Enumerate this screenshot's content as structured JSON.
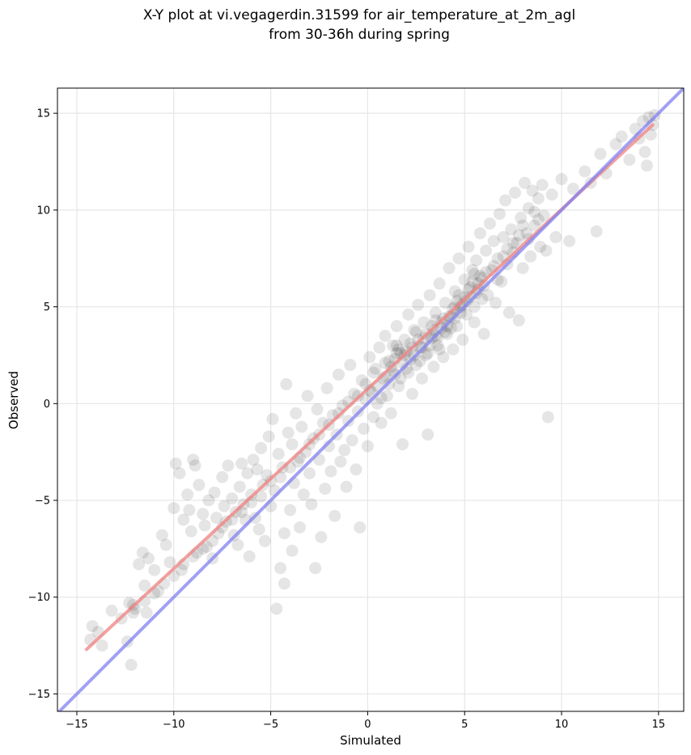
{
  "chart_data": {
    "type": "scatter",
    "title": "X-Y plot at vi.vegagerdin.31599 for air_temperature_at_2m_agl",
    "subtitle": "from 30-36h during spring",
    "xlabel": "Simulated",
    "ylabel": "Observed",
    "xlim": [
      -16.0,
      16.3
    ],
    "ylim": [
      -15.9,
      16.3
    ],
    "xticks": [
      -15,
      -10,
      -5,
      0,
      5,
      10,
      15
    ],
    "yticks": [
      -15,
      -10,
      -5,
      0,
      5,
      10,
      15
    ],
    "xtick_labels": [
      "−15",
      "−10",
      "−5",
      "0",
      "5",
      "10",
      "15"
    ],
    "ytick_labels": [
      "−15",
      "−10",
      "−5",
      "0",
      "5",
      "10",
      "15"
    ],
    "grid": true,
    "marker_color": "#000000",
    "marker_alpha": 0.1,
    "colors": {
      "fit_line": "#f08080",
      "identity_line": "#8080f0"
    },
    "lines": [
      {
        "role": "fit",
        "x": [
          -14.5,
          14.7
        ],
        "y": [
          -12.7,
          14.4
        ]
      },
      {
        "role": "identity",
        "x": [
          -16.0,
          16.3
        ],
        "y": [
          -16.0,
          16.3
        ]
      }
    ],
    "points": [
      [
        -14.3,
        -12.2
      ],
      [
        -14.2,
        -11.5
      ],
      [
        -13.9,
        -11.8
      ],
      [
        -13.7,
        -12.5
      ],
      [
        -13.2,
        -10.7
      ],
      [
        -12.7,
        -11.1
      ],
      [
        -12.4,
        -12.3
      ],
      [
        -12.3,
        -10.3
      ],
      [
        -12.2,
        -13.5
      ],
      [
        -12.1,
        -10.4
      ],
      [
        -12.1,
        -10.8
      ],
      [
        -11.8,
        -8.3
      ],
      [
        -11.6,
        -7.7
      ],
      [
        -11.5,
        -9.4
      ],
      [
        -11.4,
        -10.8
      ],
      [
        -11.3,
        -8.0
      ],
      [
        -11.0,
        -8.6
      ],
      [
        -10.8,
        -9.7
      ],
      [
        -10.6,
        -6.8
      ],
      [
        -10.4,
        -7.3
      ],
      [
        -10.2,
        -8.2
      ],
      [
        -10.0,
        -5.4
      ],
      [
        -9.9,
        -3.1
      ],
      [
        -9.7,
        -3.6
      ],
      [
        -9.6,
        -8.6
      ],
      [
        -9.5,
        -6.0
      ],
      [
        -9.3,
        -4.7
      ],
      [
        -9.2,
        -5.5
      ],
      [
        -9.1,
        -6.6
      ],
      [
        -9.0,
        -2.9
      ],
      [
        -8.9,
        -3.2
      ],
      [
        -8.8,
        -7.7
      ],
      [
        -8.7,
        -4.2
      ],
      [
        -8.5,
        -5.7
      ],
      [
        -8.4,
        -6.3
      ],
      [
        -8.3,
        -7.4
      ],
      [
        -8.2,
        -5.0
      ],
      [
        -8.0,
        -8.0
      ],
      [
        -7.9,
        -4.6
      ],
      [
        -7.8,
        -5.9
      ],
      [
        -7.7,
        -6.7
      ],
      [
        -7.5,
        -3.8
      ],
      [
        -7.4,
        -5.3
      ],
      [
        -7.3,
        -6.1
      ],
      [
        -7.2,
        -3.2
      ],
      [
        -7.0,
        -4.9
      ],
      [
        -6.9,
        -6.8
      ],
      [
        -6.8,
        -5.6
      ],
      [
        -6.7,
        -7.3
      ],
      [
        -6.6,
        -4.3
      ],
      [
        -6.5,
        -3.1
      ],
      [
        -6.4,
        -5.2
      ],
      [
        -6.3,
        -6.0
      ],
      [
        -6.2,
        -3.6
      ],
      [
        -6.1,
        -7.9
      ],
      [
        -6.0,
        -4.7
      ],
      [
        -5.9,
        -2.9
      ],
      [
        -5.8,
        -5.9
      ],
      [
        -5.7,
        -3.4
      ],
      [
        -5.6,
        -6.5
      ],
      [
        -5.5,
        -2.3
      ],
      [
        -5.4,
        -4.2
      ],
      [
        -5.3,
        -7.1
      ],
      [
        -5.2,
        -3.7
      ],
      [
        -5.1,
        -1.7
      ],
      [
        -5.0,
        -5.3
      ],
      [
        -4.9,
        -0.8
      ],
      [
        -4.8,
        -4.5
      ],
      [
        -4.7,
        -10.6
      ],
      [
        -4.6,
        -2.6
      ],
      [
        -4.5,
        -8.5
      ],
      [
        -4.4,
        -3.3
      ],
      [
        -4.3,
        -9.3
      ],
      [
        -4.3,
        -6.7
      ],
      [
        -4.2,
        1.0
      ],
      [
        -4.1,
        -1.5
      ],
      [
        -4.0,
        -5.5
      ],
      [
        -3.9,
        -2.1
      ],
      [
        -3.9,
        -7.6
      ],
      [
        -3.8,
        -4.1
      ],
      [
        -3.7,
        -0.5
      ],
      [
        -3.6,
        -3.0
      ],
      [
        -3.5,
        -6.4
      ],
      [
        -3.4,
        -1.2
      ],
      [
        -3.3,
        -4.7
      ],
      [
        -3.2,
        -2.5
      ],
      [
        -3.1,
        0.4
      ],
      [
        -3.0,
        -3.6
      ],
      [
        -2.9,
        -5.2
      ],
      [
        -2.8,
        -1.8
      ],
      [
        -2.7,
        -8.5
      ],
      [
        -2.6,
        -0.3
      ],
      [
        -2.5,
        -2.9
      ],
      [
        -2.4,
        -6.9
      ],
      [
        -2.3,
        -1.0
      ],
      [
        -2.2,
        -4.4
      ],
      [
        -2.1,
        0.8
      ],
      [
        -2.0,
        -2.2
      ],
      [
        -1.9,
        -3.5
      ],
      [
        -1.8,
        -0.6
      ],
      [
        -1.7,
        -5.8
      ],
      [
        -1.6,
        -1.6
      ],
      [
        -1.5,
        1.5
      ],
      [
        -1.4,
        -3.0
      ],
      [
        -1.3,
        -0.1
      ],
      [
        -1.2,
        -2.4
      ],
      [
        -1.1,
        -4.3
      ],
      [
        -1.0,
        -0.9
      ],
      [
        -0.9,
        2.0
      ],
      [
        -0.8,
        -1.9
      ],
      [
        -0.7,
        0.5
      ],
      [
        -0.6,
        -3.4
      ],
      [
        -0.5,
        -0.4
      ],
      [
        -0.4,
        -6.4
      ],
      [
        -0.3,
        1.2
      ],
      [
        -0.2,
        -1.3
      ],
      [
        -0.1,
        0.2
      ],
      [
        0.0,
        -2.2
      ],
      [
        0.1,
        2.4
      ],
      [
        0.2,
        0.6
      ],
      [
        0.3,
        -0.7
      ],
      [
        0.4,
        1.8
      ],
      [
        0.5,
        0.0
      ],
      [
        0.6,
        2.9
      ],
      [
        0.7,
        -1.0
      ],
      [
        0.8,
        1.3
      ],
      [
        0.9,
        3.5
      ],
      [
        1.0,
        0.4
      ],
      [
        1.1,
        2.2
      ],
      [
        1.2,
        -0.5
      ],
      [
        1.3,
        3.0
      ],
      [
        1.4,
        1.5
      ],
      [
        1.5,
        4.0
      ],
      [
        1.6,
        0.9
      ],
      [
        1.7,
        2.6
      ],
      [
        1.8,
        -2.1
      ],
      [
        1.9,
        3.3
      ],
      [
        2.0,
        1.8
      ],
      [
        2.1,
        4.6
      ],
      [
        2.2,
        2.3
      ],
      [
        2.3,
        0.5
      ],
      [
        2.4,
        3.8
      ],
      [
        2.5,
        2.0
      ],
      [
        2.6,
        5.1
      ],
      [
        2.7,
        2.9
      ],
      [
        2.8,
        1.3
      ],
      [
        2.9,
        4.2
      ],
      [
        3.0,
        2.5
      ],
      [
        3.1,
        -1.6
      ],
      [
        3.2,
        5.6
      ],
      [
        3.3,
        3.4
      ],
      [
        3.4,
        1.9
      ],
      [
        3.5,
        4.7
      ],
      [
        3.6,
        3.0
      ],
      [
        3.7,
        6.2
      ],
      [
        3.8,
        3.9
      ],
      [
        3.9,
        2.4
      ],
      [
        4.0,
        5.2
      ],
      [
        4.1,
        3.6
      ],
      [
        4.2,
        7.0
      ],
      [
        4.3,
        4.5
      ],
      [
        4.4,
        2.8
      ],
      [
        4.5,
        5.8
      ],
      [
        4.6,
        4.0
      ],
      [
        4.7,
        7.5
      ],
      [
        4.8,
        5.0
      ],
      [
        4.9,
        3.3
      ],
      [
        5.0,
        6.4
      ],
      [
        5.1,
        4.6
      ],
      [
        5.2,
        8.1
      ],
      [
        5.3,
        5.5
      ],
      [
        5.4,
        6.9
      ],
      [
        5.5,
        4.2
      ],
      [
        5.6,
        7.4
      ],
      [
        5.7,
        5.9
      ],
      [
        5.8,
        8.8
      ],
      [
        5.9,
        6.5
      ],
      [
        6.0,
        3.6
      ],
      [
        6.1,
        7.9
      ],
      [
        6.2,
        5.6
      ],
      [
        6.3,
        9.3
      ],
      [
        6.4,
        6.9
      ],
      [
        6.5,
        8.4
      ],
      [
        6.6,
        5.2
      ],
      [
        6.7,
        7.5
      ],
      [
        6.8,
        9.8
      ],
      [
        6.9,
        6.3
      ],
      [
        7.0,
        8.6
      ],
      [
        7.1,
        10.5
      ],
      [
        7.2,
        7.2
      ],
      [
        7.3,
        4.7
      ],
      [
        7.4,
        9.0
      ],
      [
        7.5,
        7.8
      ],
      [
        7.6,
        10.9
      ],
      [
        7.7,
        8.3
      ],
      [
        7.8,
        4.3
      ],
      [
        7.9,
        9.6
      ],
      [
        8.0,
        7.0
      ],
      [
        8.1,
        11.4
      ],
      [
        8.2,
        8.8
      ],
      [
        8.3,
        10.1
      ],
      [
        8.4,
        7.6
      ],
      [
        8.5,
        11.0
      ],
      [
        8.6,
        9.2
      ],
      [
        8.8,
        10.6
      ],
      [
        8.9,
        8.1
      ],
      [
        9.0,
        11.3
      ],
      [
        9.1,
        9.7
      ],
      [
        9.2,
        7.9
      ],
      [
        9.3,
        -0.7
      ],
      [
        9.5,
        10.8
      ],
      [
        9.7,
        8.6
      ],
      [
        10.0,
        11.6
      ],
      [
        10.4,
        8.4
      ],
      [
        10.6,
        11.1
      ],
      [
        11.2,
        12.0
      ],
      [
        11.5,
        11.4
      ],
      [
        11.8,
        8.9
      ],
      [
        12.0,
        12.9
      ],
      [
        12.3,
        11.9
      ],
      [
        12.8,
        13.4
      ],
      [
        13.1,
        13.8
      ],
      [
        13.5,
        12.6
      ],
      [
        13.8,
        14.2
      ],
      [
        14.0,
        13.7
      ],
      [
        14.2,
        14.6
      ],
      [
        14.3,
        13.0
      ],
      [
        14.4,
        12.3
      ],
      [
        14.5,
        14.8
      ],
      [
        14.6,
        13.9
      ],
      [
        14.7,
        14.4
      ],
      [
        14.8,
        14.9
      ],
      [
        1.2,
        1.9
      ],
      [
        1.4,
        2.3
      ],
      [
        1.6,
        2.8
      ],
      [
        1.8,
        2.1
      ],
      [
        2.0,
        2.7
      ],
      [
        2.2,
        3.1
      ],
      [
        2.4,
        2.5
      ],
      [
        2.6,
        3.3
      ],
      [
        2.8,
        2.9
      ],
      [
        3.0,
        3.6
      ],
      [
        3.2,
        3.0
      ],
      [
        3.4,
        3.8
      ],
      [
        3.6,
        3.4
      ],
      [
        3.8,
        4.2
      ],
      [
        4.0,
        3.7
      ],
      [
        4.2,
        4.5
      ],
      [
        4.4,
        4.9
      ],
      [
        4.6,
        5.3
      ],
      [
        4.8,
        4.7
      ],
      [
        5.0,
        5.5
      ],
      [
        5.2,
        5.9
      ],
      [
        5.4,
        6.3
      ],
      [
        5.6,
        5.7
      ],
      [
        5.8,
        6.6
      ],
      [
        6.0,
        6.1
      ],
      [
        0.9,
        1.4
      ],
      [
        1.1,
        1.0
      ],
      [
        1.3,
        1.7
      ],
      [
        1.7,
        1.3
      ],
      [
        1.9,
        2.5
      ],
      [
        2.1,
        1.6
      ],
      [
        2.3,
        2.9
      ],
      [
        2.7,
        2.2
      ],
      [
        2.9,
        3.4
      ],
      [
        3.1,
        2.6
      ],
      [
        3.3,
        4.0
      ],
      [
        3.5,
        3.5
      ],
      [
        3.7,
        2.8
      ],
      [
        3.9,
        4.4
      ],
      [
        4.1,
        4.0
      ],
      [
        4.3,
        3.9
      ],
      [
        4.5,
        4.4
      ],
      [
        4.7,
        5.6
      ],
      [
        4.9,
        5.1
      ],
      [
        5.1,
        5.3
      ],
      [
        5.3,
        6.0
      ],
      [
        5.5,
        6.7
      ],
      [
        5.7,
        6.2
      ],
      [
        5.9,
        5.4
      ],
      [
        6.1,
        6.8
      ],
      [
        0.5,
        0.9
      ],
      [
        0.7,
        0.3
      ],
      [
        0.3,
        1.6
      ],
      [
        0.1,
        0.7
      ],
      [
        -0.1,
        1.0
      ],
      [
        0.9,
        2.1
      ],
      [
        1.5,
        2.6
      ],
      [
        1.5,
        3.0
      ],
      [
        2.5,
        3.7
      ],
      [
        3.5,
        4.3
      ],
      [
        4.5,
        5.0
      ],
      [
        5.5,
        5.0
      ],
      [
        6.5,
        7.1
      ],
      [
        6.7,
        6.4
      ],
      [
        7.0,
        7.6
      ],
      [
        7.2,
        8.0
      ],
      [
        7.5,
        8.3
      ],
      [
        7.8,
        8.7
      ],
      [
        8.0,
        9.2
      ],
      [
        8.3,
        8.5
      ],
      [
        8.6,
        9.9
      ],
      [
        8.8,
        9.5
      ],
      [
        -1.5,
        -0.5
      ],
      [
        -1.0,
        0.1
      ],
      [
        -0.5,
        0.4
      ],
      [
        -2.0,
        -1.1
      ],
      [
        -2.5,
        -1.6
      ],
      [
        -3.0,
        -2.1
      ],
      [
        -3.5,
        -2.8
      ],
      [
        -4.0,
        -3.3
      ],
      [
        -4.5,
        -3.8
      ],
      [
        -5.0,
        -4.0
      ],
      [
        -5.5,
        -4.8
      ],
      [
        -6.0,
        -5.1
      ],
      [
        -6.5,
        -5.6
      ],
      [
        -7.0,
        -6.0
      ],
      [
        -7.5,
        -6.4
      ],
      [
        -8.0,
        -7.1
      ],
      [
        -8.5,
        -7.5
      ],
      [
        -9.0,
        -7.9
      ],
      [
        -9.5,
        -8.3
      ],
      [
        -10.0,
        -8.9
      ],
      [
        -10.5,
        -9.3
      ],
      [
        -11.0,
        -9.8
      ],
      [
        -11.5,
        -10.2
      ],
      [
        -12.0,
        -10.6
      ]
    ]
  }
}
